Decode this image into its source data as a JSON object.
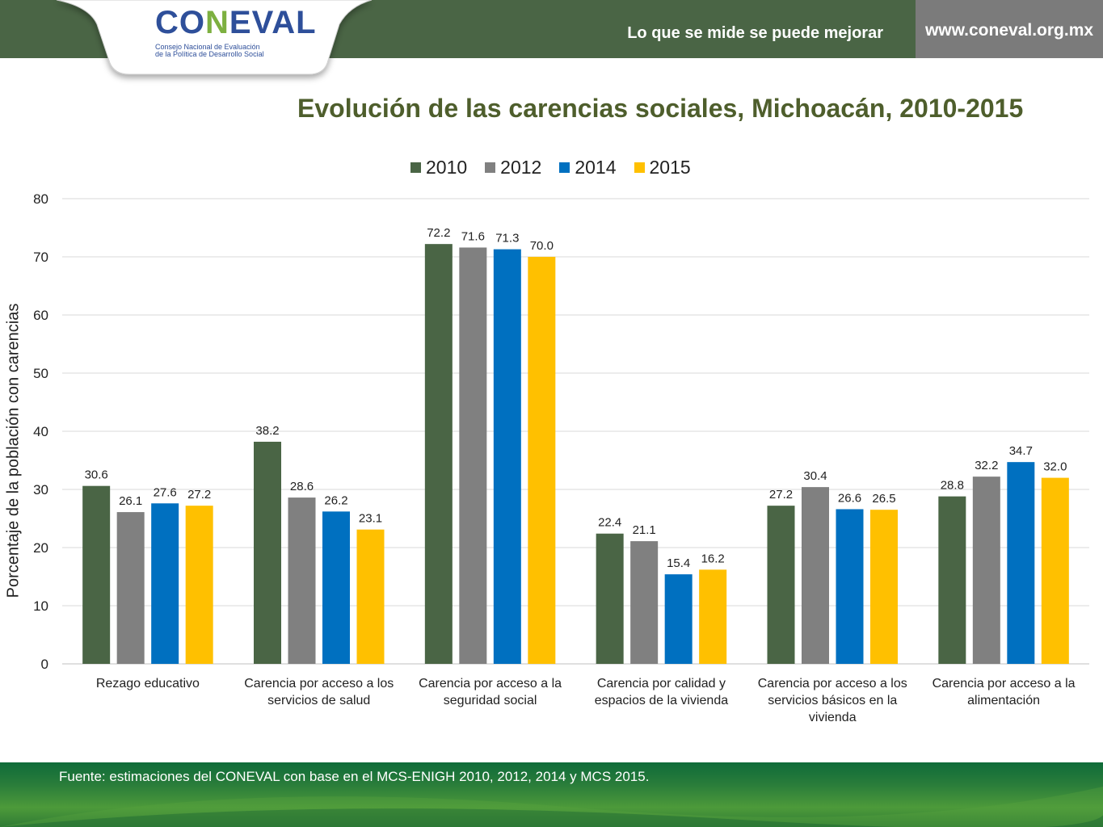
{
  "header": {
    "logo_text_pre": "CO",
    "logo_text_l": "N",
    "logo_text_post": "EVAL",
    "logo_subtitle_1": "Consejo Nacional de Evaluación",
    "logo_subtitle_2": "de la Política de Desarrollo Social",
    "slogan": "Lo que se mide se puede mejorar",
    "url": "www.coneval.org.mx"
  },
  "colors": {
    "header_green": "#4a6545",
    "url_gray": "#7b7b7b",
    "title_color": "#4e5e2c"
  },
  "footer": {
    "source": "Fuente: estimaciones del CONEVAL con base en el MCS-ENIGH 2010, 2012, 2014 y MCS 2015."
  },
  "chart_data": {
    "type": "bar",
    "title": "Evolución de las carencias sociales, Michoacán, 2010-2015",
    "ylabel": "Porcentaje de la población con carencias",
    "xlabel": "",
    "ylim": [
      0,
      80
    ],
    "yticks": [
      0,
      10,
      20,
      30,
      40,
      50,
      60,
      70,
      80
    ],
    "grid": true,
    "legend_position": "top",
    "categories": [
      [
        "Rezago educativo"
      ],
      [
        "Carencia por acceso a los",
        "servicios de salud"
      ],
      [
        "Carencia por acceso a la",
        "seguridad social"
      ],
      [
        "Carencia por calidad y",
        "espacios de la vivienda"
      ],
      [
        "Carencia por acceso a los",
        "servicios básicos en la",
        "vivienda"
      ],
      [
        "Carencia por acceso a la",
        "alimentación"
      ]
    ],
    "series": [
      {
        "name": "2010",
        "color": "#4a6545",
        "values": [
          30.6,
          38.2,
          72.2,
          22.4,
          27.2,
          28.8
        ]
      },
      {
        "name": "2012",
        "color": "#808080",
        "values": [
          26.1,
          28.6,
          71.6,
          21.1,
          30.4,
          32.2
        ]
      },
      {
        "name": "2014",
        "color": "#0070c0",
        "values": [
          27.6,
          26.2,
          71.3,
          15.4,
          26.6,
          34.7
        ]
      },
      {
        "name": "2015",
        "color": "#ffc000",
        "values": [
          27.2,
          23.1,
          70.0,
          16.2,
          26.5,
          32.0
        ]
      }
    ]
  }
}
